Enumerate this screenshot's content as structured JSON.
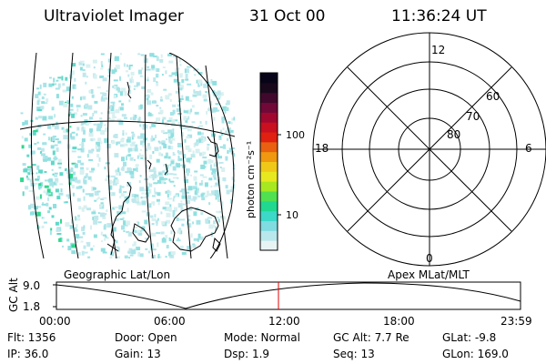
{
  "header": {
    "title": "Ultraviolet Imager",
    "date": "31 Oct 00",
    "time": "11:36:24 UT"
  },
  "colorbar": {
    "unit_label": "photon cm⁻²s⁻¹",
    "ticks": [
      "100",
      "10"
    ],
    "colors": [
      "#e8f4f4",
      "#b8e8ec",
      "#7fdce0",
      "#3cd8c8",
      "#20d890",
      "#50e050",
      "#a8e820",
      "#e8e820",
      "#f0c818",
      "#f09810",
      "#e86010",
      "#e02010",
      "#c81020",
      "#a00830",
      "#700838",
      "#40082c",
      "#18081c",
      "#080418"
    ]
  },
  "geo_map": {
    "label": "Geographic Lat/Lon"
  },
  "polar_plot": {
    "label": "Apex MLat/MLT",
    "mlt_labels": [
      "12",
      "18",
      "6",
      "0"
    ],
    "lat_labels": [
      "60",
      "70",
      "80"
    ]
  },
  "orbit_plot": {
    "y_title": "GC Alt",
    "y_ticks": [
      "9.0",
      "1.8"
    ],
    "x_ticks": [
      "00:00",
      "06:00",
      "12:00",
      "18:00",
      "23:59"
    ],
    "current_time_marker_color": "#e00000"
  },
  "info": {
    "flt": "Flt: 1356",
    "ip": "IP: 36.0",
    "door": "Door: Open",
    "gain": "Gain: 13",
    "mode": "Mode: Normal",
    "dsp": "Dsp:    1.9",
    "gc_alt": "GC Alt: 7.7 Re",
    "seq": "Seq: 13",
    "glat": "GLat:  -9.8",
    "glon": "GLon: 169.0"
  }
}
